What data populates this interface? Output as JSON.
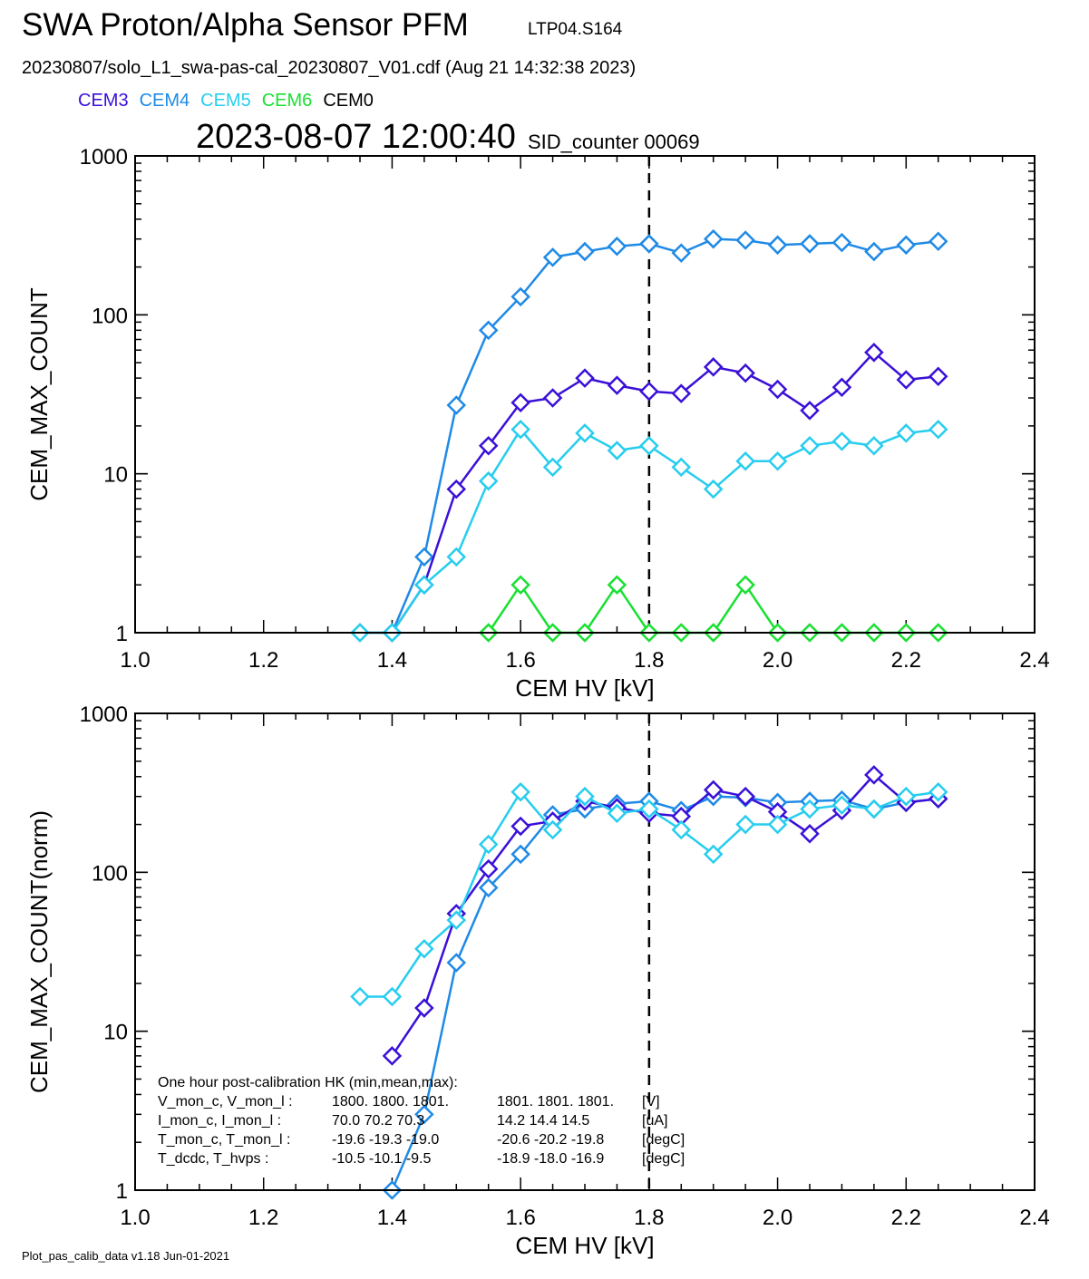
{
  "header": {
    "title": "SWA Proton/Alpha Sensor PFM",
    "code": "LTP04.S164",
    "file": "20230807/solo_L1_swa-pas-cal_20230807_V01.cdf  (Aug 21 14:32:38 2023)",
    "timestamp": "2023-08-07 12:00:40",
    "sid": "SID_counter 00069"
  },
  "legend": [
    {
      "name": "CEM3",
      "color": "#3a10d8"
    },
    {
      "name": "CEM4",
      "color": "#1f8ae6"
    },
    {
      "name": "CEM5",
      "color": "#27cdef"
    },
    {
      "name": "CEM6",
      "color": "#19e032"
    },
    {
      "name": "CEM0",
      "color": "#000000"
    }
  ],
  "footer": "Plot_pas_calib_data v1.18 Jun-01-2021",
  "hk": {
    "heading": "One hour post-calibration HK (min,mean,max):",
    "rows": [
      {
        "label": "V_mon_c, V_mon_l :",
        "a": "1800.  1800.  1801.",
        "b": "1801.  1801.  1801.",
        "unit": "[V]"
      },
      {
        "label": "I_mon_c,  I_mon_l :",
        "a": "70.0  70.2  70.3",
        "b": "14.2  14.4  14.5",
        "unit": "[uA]"
      },
      {
        "label": "T_mon_c, T_mon_l :",
        "a": "-19.6  -19.3  -19.0",
        "b": "-20.6  -20.2  -19.8",
        "unit": "[degC]"
      },
      {
        "label": "T_dcdc,    T_hvps :",
        "a": "-10.5  -10.1   -9.5",
        "b": "-18.9  -18.0  -16.9",
        "unit": "[degC]"
      }
    ]
  },
  "chart_data": [
    {
      "type": "line",
      "xlabel": "CEM HV [kV]",
      "ylabel": "CEM_MAX_COUNT",
      "xlim": [
        1.0,
        2.4
      ],
      "ylim": [
        1,
        1000
      ],
      "yscale": "log",
      "xticks": [
        "1.0",
        "1.2",
        "1.4",
        "1.6",
        "1.8",
        "2.0",
        "2.2",
        "2.4"
      ],
      "yticks": [
        "1",
        "10",
        "100",
        "1000"
      ],
      "marker": "diamond",
      "vline": 1.8,
      "series": [
        {
          "name": "CEM4",
          "color": "#1f8ae6",
          "x": [
            1.35,
            1.4,
            1.45,
            1.5,
            1.55,
            1.6,
            1.65,
            1.7,
            1.75,
            1.8,
            1.85,
            1.9,
            1.95,
            2.0,
            2.05,
            2.1,
            2.15,
            2.2,
            2.25
          ],
          "y": [
            1,
            1,
            3,
            27,
            80,
            130,
            230,
            250,
            270,
            280,
            245,
            300,
            295,
            275,
            280,
            285,
            250,
            275,
            290
          ]
        },
        {
          "name": "CEM3",
          "color": "#3a10d8",
          "x": [
            1.4,
            1.45,
            1.5,
            1.55,
            1.6,
            1.65,
            1.7,
            1.75,
            1.8,
            1.85,
            1.9,
            1.95,
            2.0,
            2.05,
            2.1,
            2.15,
            2.2,
            2.25
          ],
          "y": [
            1,
            2,
            8,
            15,
            28,
            30,
            40,
            36,
            33,
            32,
            47,
            43,
            34,
            25,
            35,
            58,
            39,
            41
          ]
        },
        {
          "name": "CEM5",
          "color": "#27cdef",
          "x": [
            1.35,
            1.4,
            1.45,
            1.5,
            1.55,
            1.6,
            1.65,
            1.7,
            1.75,
            1.8,
            1.85,
            1.9,
            1.95,
            2.0,
            2.05,
            2.1,
            2.15,
            2.2,
            2.25
          ],
          "y": [
            1,
            1,
            2,
            3,
            9,
            19,
            11,
            18,
            14,
            15,
            11,
            8,
            12,
            12,
            15,
            16,
            15,
            18,
            19
          ]
        },
        {
          "name": "CEM6",
          "color": "#19e032",
          "x": [
            1.55,
            1.6,
            1.65,
            1.7,
            1.75,
            1.8,
            1.85,
            1.9,
            1.95,
            2.0,
            2.05,
            2.1,
            2.15,
            2.2,
            2.25
          ],
          "y": [
            1,
            2,
            1,
            1,
            2,
            1,
            1,
            1,
            2,
            1,
            1,
            1,
            1,
            1,
            1
          ]
        }
      ]
    },
    {
      "type": "line",
      "xlabel": "CEM HV [kV]",
      "ylabel": "CEM_MAX_COUNT(norm)",
      "xlim": [
        1.0,
        2.4
      ],
      "ylim": [
        1,
        1000
      ],
      "yscale": "log",
      "xticks": [
        "1.0",
        "1.2",
        "1.4",
        "1.6",
        "1.8",
        "2.0",
        "2.2",
        "2.4"
      ],
      "yticks": [
        "1",
        "10",
        "100",
        "1000"
      ],
      "marker": "diamond",
      "vline": 1.8,
      "series": [
        {
          "name": "CEM4",
          "color": "#1f8ae6",
          "x": [
            1.4,
            1.45,
            1.5,
            1.55,
            1.6,
            1.65,
            1.7,
            1.75,
            1.8,
            1.85,
            1.9,
            1.95,
            2.0,
            2.05,
            2.1,
            2.15,
            2.2,
            2.25
          ],
          "y": [
            1,
            3,
            27,
            80,
            130,
            230,
            250,
            270,
            280,
            245,
            300,
            295,
            275,
            280,
            285,
            250,
            275,
            290
          ]
        },
        {
          "name": "CEM3",
          "color": "#3a10d8",
          "x": [
            1.4,
            1.45,
            1.5,
            1.55,
            1.6,
            1.65,
            1.7,
            1.75,
            1.8,
            1.85,
            1.9,
            1.95,
            2.0,
            2.05,
            2.1,
            2.15,
            2.2,
            2.25
          ],
          "y": [
            7,
            14,
            55,
            105,
            195,
            210,
            280,
            255,
            235,
            225,
            330,
            300,
            240,
            175,
            245,
            410,
            275,
            290
          ]
        },
        {
          "name": "CEM5",
          "color": "#27cdef",
          "x": [
            1.35,
            1.4,
            1.45,
            1.5,
            1.55,
            1.6,
            1.65,
            1.7,
            1.75,
            1.8,
            1.85,
            1.9,
            1.95,
            2.0,
            2.05,
            2.1,
            2.15,
            2.2,
            2.25
          ],
          "y": [
            16.5,
            16.5,
            33,
            50,
            150,
            320,
            185,
            300,
            235,
            250,
            185,
            130,
            200,
            200,
            250,
            265,
            250,
            300,
            320
          ]
        }
      ]
    }
  ]
}
